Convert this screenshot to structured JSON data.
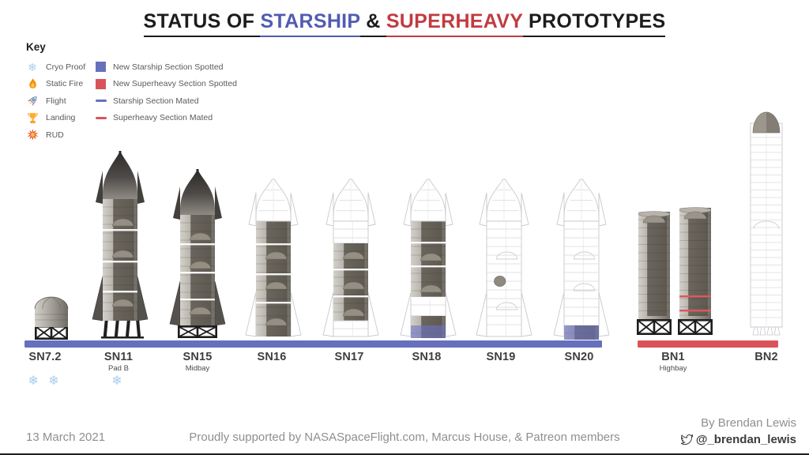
{
  "title": {
    "prefix": "STATUS OF ",
    "starship": "STARSHIP",
    "amp": " & ",
    "superheavy": "SUPERHEAVY",
    "suffix": " PROTOTYPES"
  },
  "key": {
    "heading": "Key",
    "status_items": [
      {
        "icon": "snowflake-icon",
        "label": "Cryo Proof"
      },
      {
        "icon": "fire-icon",
        "label": "Static Fire"
      },
      {
        "icon": "rocket-icon",
        "label": "Flight"
      },
      {
        "icon": "trophy-icon",
        "label": "Landing"
      },
      {
        "icon": "explosion-icon",
        "label": "RUD"
      }
    ],
    "section_items": [
      {
        "swatch": "square",
        "color": "#6670BD",
        "label": "New Starship Section Spotted"
      },
      {
        "swatch": "square",
        "color": "#D9545A",
        "label": "New Superheavy Section Spotted"
      },
      {
        "swatch": "line",
        "color": "#6670BD",
        "label": "Starship Section Mated"
      },
      {
        "swatch": "line",
        "color": "#D9545A",
        "label": "Superheavy Section Mated"
      }
    ]
  },
  "prototypes": [
    {
      "name": "SN7.2",
      "sublabel": "",
      "badges": [
        "snowflake",
        "snowflake"
      ]
    },
    {
      "name": "SN11",
      "sublabel": "Pad B",
      "badges": [
        "snowflake"
      ]
    },
    {
      "name": "SN15",
      "sublabel": "Midbay",
      "badges": []
    },
    {
      "name": "SN16",
      "sublabel": "",
      "badges": []
    },
    {
      "name": "SN17",
      "sublabel": "",
      "badges": []
    },
    {
      "name": "SN18",
      "sublabel": "",
      "badges": []
    },
    {
      "name": "SN19",
      "sublabel": "",
      "badges": []
    },
    {
      "name": "SN20",
      "sublabel": "",
      "badges": []
    },
    {
      "name": "BN1",
      "sublabel": "Highbay",
      "badges": []
    },
    {
      "name": "BN2",
      "sublabel": "",
      "badges": []
    }
  ],
  "groups": {
    "starship_bar_color": "#6670BD",
    "superheavy_bar_color": "#D9545A"
  },
  "footer": {
    "date": "13 March 2021",
    "support": "Proudly supported by NASASpaceFlight.com, Marcus House, & Patreon members",
    "byline": "By Brendan Lewis",
    "twitter_handle": "@_brendan_lewis"
  },
  "colors": {
    "title_blue": "#515CB1",
    "title_red": "#C23B40",
    "text_dark": "#1C1C1C",
    "cryo_blue": "#A9CDEC"
  }
}
